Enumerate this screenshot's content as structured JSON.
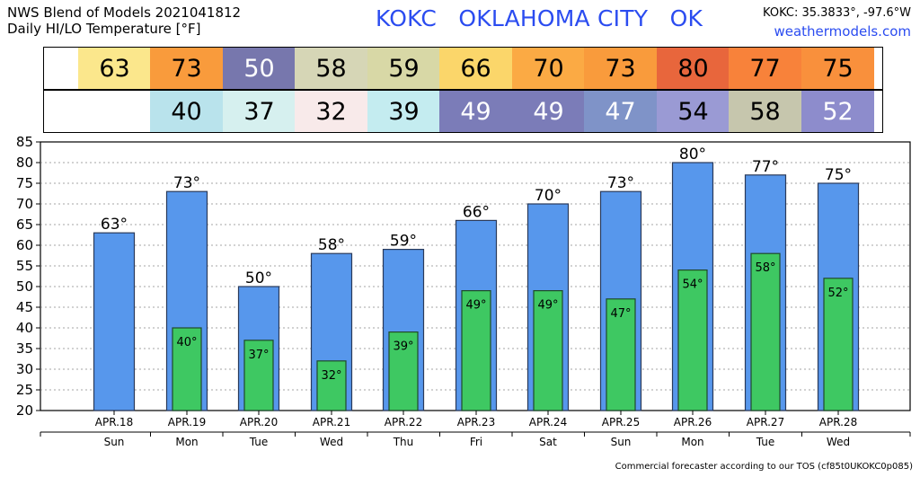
{
  "header": {
    "title_line1": "NWS Blend of Models 2021041812",
    "title_line2": "Daily HI/LO Temperature [°F]",
    "station": "KOKC   OKLAHOMA CITY   OK",
    "coords": "KOKC: 35.3833°, -97.6°W",
    "site": "weathermodels.com"
  },
  "strips": {
    "hi": [
      {
        "value": "63",
        "color": "#fbe78c"
      },
      {
        "value": "73",
        "color": "#f99b3c"
      },
      {
        "value": "50",
        "color": "#7777ad"
      },
      {
        "value": "58",
        "color": "#d6d6b6"
      },
      {
        "value": "59",
        "color": "#d8d8a6"
      },
      {
        "value": "66",
        "color": "#fbd66a"
      },
      {
        "value": "70",
        "color": "#fbaa44"
      },
      {
        "value": "73",
        "color": "#f99b3c"
      },
      {
        "value": "80",
        "color": "#e8663c"
      },
      {
        "value": "77",
        "color": "#f8823a"
      },
      {
        "value": "75",
        "color": "#f9903c"
      }
    ],
    "lo": [
      {
        "value": "",
        "color": "#ffffff"
      },
      {
        "value": "40",
        "color": "#b9e3ec"
      },
      {
        "value": "37",
        "color": "#d6f0ef"
      },
      {
        "value": "32",
        "color": "#f8eaea"
      },
      {
        "value": "39",
        "color": "#c4ecf0"
      },
      {
        "value": "49",
        "color": "#7b7cb8"
      },
      {
        "value": "49",
        "color": "#7b7cb8"
      },
      {
        "value": "47",
        "color": "#7f93c8"
      },
      {
        "value": "54",
        "color": "#9a9ad4"
      },
      {
        "value": "58",
        "color": "#c6c6ad"
      },
      {
        "value": "52",
        "color": "#8d8ccc"
      }
    ]
  },
  "chart_data": {
    "type": "bar",
    "categories": [
      "APR.18",
      "APR.19",
      "APR.20",
      "APR.21",
      "APR.22",
      "APR.23",
      "APR.24",
      "APR.25",
      "APR.26",
      "APR.27",
      "APR.28"
    ],
    "days": [
      "Sun",
      "Mon",
      "Tue",
      "Wed",
      "Thu",
      "Fri",
      "Sat",
      "Sun",
      "Mon",
      "Tue",
      "Wed"
    ],
    "series": [
      {
        "values": [
          63,
          73,
          50,
          58,
          59,
          66,
          70,
          73,
          80,
          77,
          75
        ],
        "color": "#5797ec"
      },
      {
        "values": [
          null,
          40,
          37,
          32,
          39,
          49,
          49,
          47,
          54,
          58,
          52
        ],
        "color": "#3ec862"
      }
    ],
    "hi_labels": [
      "63°",
      "73°",
      "50°",
      "58°",
      "59°",
      "66°",
      "70°",
      "73°",
      "80°",
      "77°",
      "75°"
    ],
    "lo_labels": [
      "",
      "40°",
      "37°",
      "32°",
      "39°",
      "49°",
      "49°",
      "47°",
      "54°",
      "58°",
      "52°"
    ],
    "ylim": [
      20,
      85
    ],
    "yticks": [
      20,
      25,
      30,
      35,
      40,
      45,
      50,
      55,
      60,
      65,
      70,
      75,
      80,
      85
    ],
    "grid": true
  },
  "footer": "Commercial forecaster according to our TOS (cf85t0UKOKC0p085)"
}
